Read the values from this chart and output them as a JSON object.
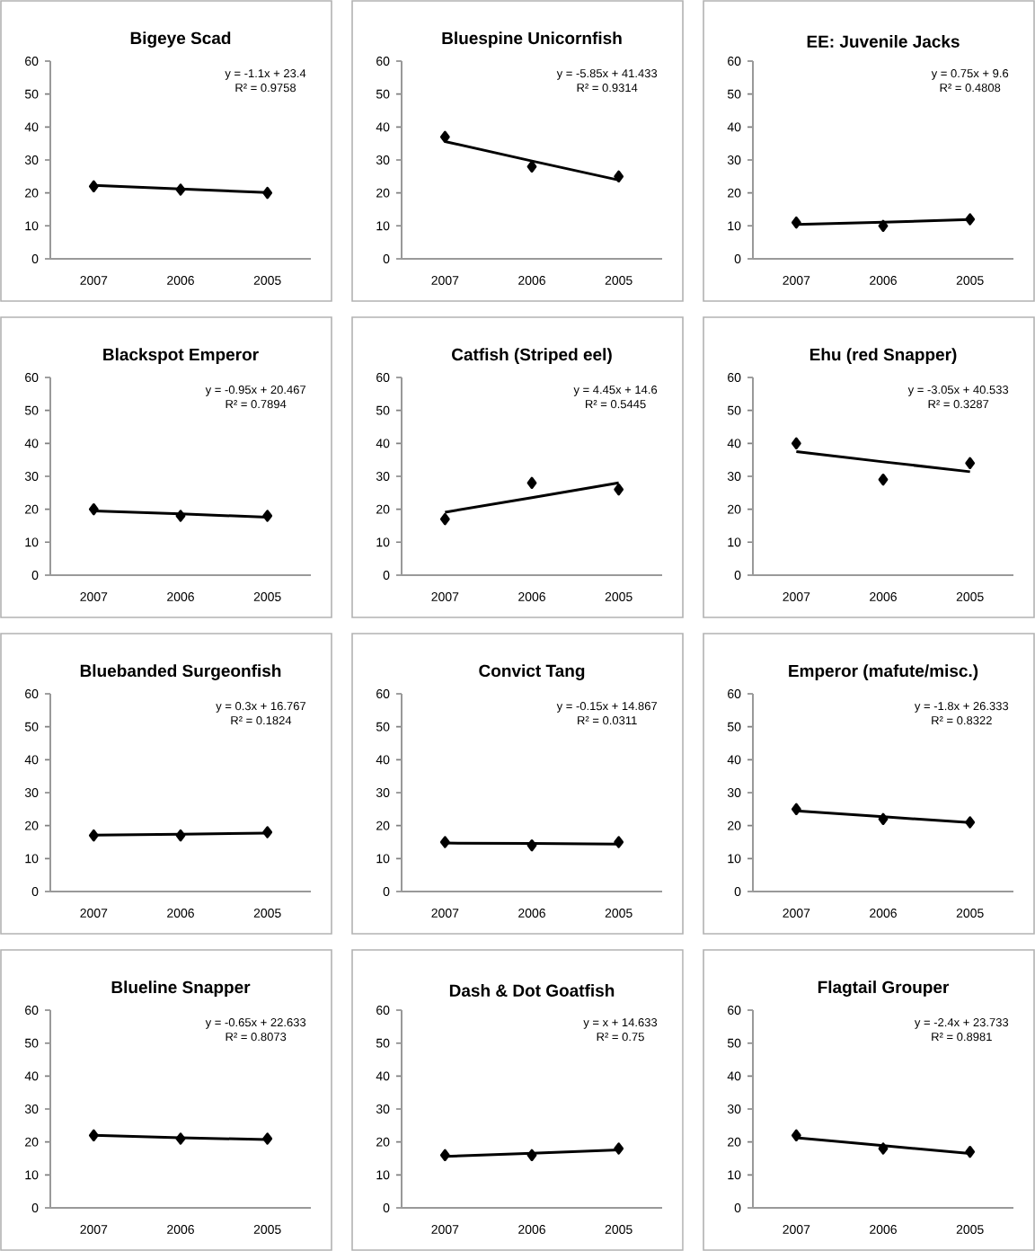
{
  "chart_data": [
    {
      "type": "scatter",
      "title": "Bigeye Scad",
      "categories": [
        "2007",
        "2006",
        "2005"
      ],
      "ylim": [
        0,
        60
      ],
      "yticks": [
        0,
        10,
        20,
        30,
        40,
        50,
        60
      ],
      "marker": "diamond",
      "annotations": [
        "y = -1.1x + 23.4",
        "R² = 0.9758"
      ],
      "series": [
        {
          "type": "scatter",
          "color": "#000000",
          "values": [
            22,
            21,
            20
          ]
        },
        {
          "type": "line",
          "color": "#000000",
          "marker": "none",
          "values": [
            22.3,
            21.2,
            20.1
          ]
        }
      ]
    },
    {
      "type": "scatter",
      "title": "Bluespine Unicornfish",
      "categories": [
        "2007",
        "2006",
        "2005"
      ],
      "ylim": [
        0,
        60
      ],
      "yticks": [
        0,
        10,
        20,
        30,
        40,
        50,
        60
      ],
      "marker": "diamond",
      "annotations": [
        "y = -5.85x + 41.433",
        "R² = 0.9314"
      ],
      "series": [
        {
          "type": "scatter",
          "color": "#000000",
          "values": [
            37,
            28,
            25
          ]
        },
        {
          "type": "line",
          "color": "#000000",
          "marker": "none",
          "values": [
            35.6,
            29.7,
            23.9
          ]
        }
      ]
    },
    {
      "type": "scatter",
      "title": "EE: Juvenile Jacks",
      "categories": [
        "2007",
        "2006",
        "2005"
      ],
      "ylim": [
        0,
        60
      ],
      "yticks": [
        0,
        10,
        20,
        30,
        40,
        50,
        60
      ],
      "marker": "diamond",
      "annotations": [
        "y = 0.75x + 9.6",
        "R² = 0.4808"
      ],
      "series": [
        {
          "type": "scatter",
          "color": "#000000",
          "values": [
            11,
            10,
            12
          ]
        },
        {
          "type": "line",
          "color": "#000000",
          "marker": "none",
          "values": [
            10.4,
            11.1,
            11.9
          ]
        }
      ]
    },
    {
      "type": "scatter",
      "title": "Blackspot Emperor",
      "categories": [
        "2007",
        "2006",
        "2005"
      ],
      "ylim": [
        0,
        60
      ],
      "yticks": [
        0,
        10,
        20,
        30,
        40,
        50,
        60
      ],
      "marker": "diamond",
      "annotations": [
        "y = -0.95x + 20.467",
        "R² = 0.7894"
      ],
      "series": [
        {
          "type": "scatter",
          "color": "#000000",
          "values": [
            20,
            18,
            18
          ]
        },
        {
          "type": "line",
          "color": "#000000",
          "marker": "none",
          "values": [
            19.5,
            18.6,
            17.6
          ]
        }
      ]
    },
    {
      "type": "scatter",
      "title": "Catfish (Striped eel)",
      "categories": [
        "2007",
        "2006",
        "2005"
      ],
      "ylim": [
        0,
        60
      ],
      "yticks": [
        0,
        10,
        20,
        30,
        40,
        50,
        60
      ],
      "marker": "diamond",
      "annotations": [
        "y = 4.45x + 14.6",
        "R² = 0.5445"
      ],
      "series": [
        {
          "type": "scatter",
          "color": "#000000",
          "values": [
            17,
            28,
            26
          ]
        },
        {
          "type": "line",
          "color": "#000000",
          "marker": "none",
          "values": [
            19.1,
            23.5,
            28.0
          ]
        }
      ]
    },
    {
      "type": "scatter",
      "title": "Ehu (red Snapper)",
      "categories": [
        "2007",
        "2006",
        "2005"
      ],
      "ylim": [
        0,
        60
      ],
      "yticks": [
        0,
        10,
        20,
        30,
        40,
        50,
        60
      ],
      "marker": "diamond",
      "annotations": [
        "y = -3.05x + 40.533",
        "R² = 0.3287"
      ],
      "series": [
        {
          "type": "scatter",
          "color": "#000000",
          "values": [
            40,
            29,
            34
          ]
        },
        {
          "type": "line",
          "color": "#000000",
          "marker": "none",
          "values": [
            37.5,
            34.4,
            31.4
          ]
        }
      ]
    },
    {
      "type": "scatter",
      "title": "Bluebanded Surgeonfish",
      "categories": [
        "2007",
        "2006",
        "2005"
      ],
      "ylim": [
        0,
        60
      ],
      "yticks": [
        0,
        10,
        20,
        30,
        40,
        50,
        60
      ],
      "marker": "diamond",
      "annotations": [
        "y = 0.3x + 16.767",
        "R² = 0.1824"
      ],
      "series": [
        {
          "type": "scatter",
          "color": "#000000",
          "values": [
            17,
            17,
            18
          ]
        },
        {
          "type": "line",
          "color": "#000000",
          "marker": "none",
          "values": [
            17.1,
            17.4,
            17.7
          ]
        }
      ]
    },
    {
      "type": "scatter",
      "title": "Convict Tang",
      "categories": [
        "2007",
        "2006",
        "2005"
      ],
      "ylim": [
        0,
        60
      ],
      "yticks": [
        0,
        10,
        20,
        30,
        40,
        50,
        60
      ],
      "marker": "diamond",
      "annotations": [
        "y = -0.15x + 14.867",
        "R² = 0.0311"
      ],
      "series": [
        {
          "type": "scatter",
          "color": "#000000",
          "values": [
            15,
            14,
            15
          ]
        },
        {
          "type": "line",
          "color": "#000000",
          "marker": "none",
          "values": [
            14.7,
            14.6,
            14.4
          ]
        }
      ]
    },
    {
      "type": "scatter",
      "title": "Emperor (mafute/misc.)",
      "categories": [
        "2007",
        "2006",
        "2005"
      ],
      "ylim": [
        0,
        60
      ],
      "yticks": [
        0,
        10,
        20,
        30,
        40,
        50,
        60
      ],
      "marker": "diamond",
      "annotations": [
        "y = -1.8x + 26.333",
        "R² = 0.8322"
      ],
      "series": [
        {
          "type": "scatter",
          "color": "#000000",
          "values": [
            25,
            22,
            21
          ]
        },
        {
          "type": "line",
          "color": "#000000",
          "marker": "none",
          "values": [
            24.5,
            22.7,
            20.9
          ]
        }
      ]
    },
    {
      "type": "scatter",
      "title": "Blueline Snapper",
      "categories": [
        "2007",
        "2006",
        "2005"
      ],
      "ylim": [
        0,
        60
      ],
      "yticks": [
        0,
        10,
        20,
        30,
        40,
        50,
        60
      ],
      "marker": "diamond",
      "annotations": [
        "y = -0.65x + 22.633",
        "R² = 0.8073"
      ],
      "series": [
        {
          "type": "scatter",
          "color": "#000000",
          "values": [
            22,
            21,
            21
          ]
        },
        {
          "type": "line",
          "color": "#000000",
          "marker": "none",
          "values": [
            22.0,
            21.3,
            20.7
          ]
        }
      ]
    },
    {
      "type": "scatter",
      "title": "Dash & Dot Goatfish",
      "categories": [
        "2007",
        "2006",
        "2005"
      ],
      "ylim": [
        0,
        60
      ],
      "yticks": [
        0,
        10,
        20,
        30,
        40,
        50,
        60
      ],
      "marker": "diamond",
      "annotations": [
        "y = x + 14.633",
        "R² = 0.75"
      ],
      "series": [
        {
          "type": "scatter",
          "color": "#000000",
          "values": [
            16,
            16,
            18
          ]
        },
        {
          "type": "line",
          "color": "#000000",
          "marker": "none",
          "values": [
            15.6,
            16.6,
            17.6
          ]
        }
      ]
    },
    {
      "type": "scatter",
      "title": "Flagtail Grouper",
      "categories": [
        "2007",
        "2006",
        "2005"
      ],
      "ylim": [
        0,
        60
      ],
      "yticks": [
        0,
        10,
        20,
        30,
        40,
        50,
        60
      ],
      "marker": "diamond",
      "annotations": [
        "y = -2.4x + 23.733",
        "R² = 0.8981"
      ],
      "series": [
        {
          "type": "scatter",
          "color": "#000000",
          "values": [
            22,
            18,
            17
          ]
        },
        {
          "type": "line",
          "color": "#000000",
          "marker": "none",
          "values": [
            21.3,
            18.9,
            16.5
          ]
        }
      ]
    }
  ]
}
